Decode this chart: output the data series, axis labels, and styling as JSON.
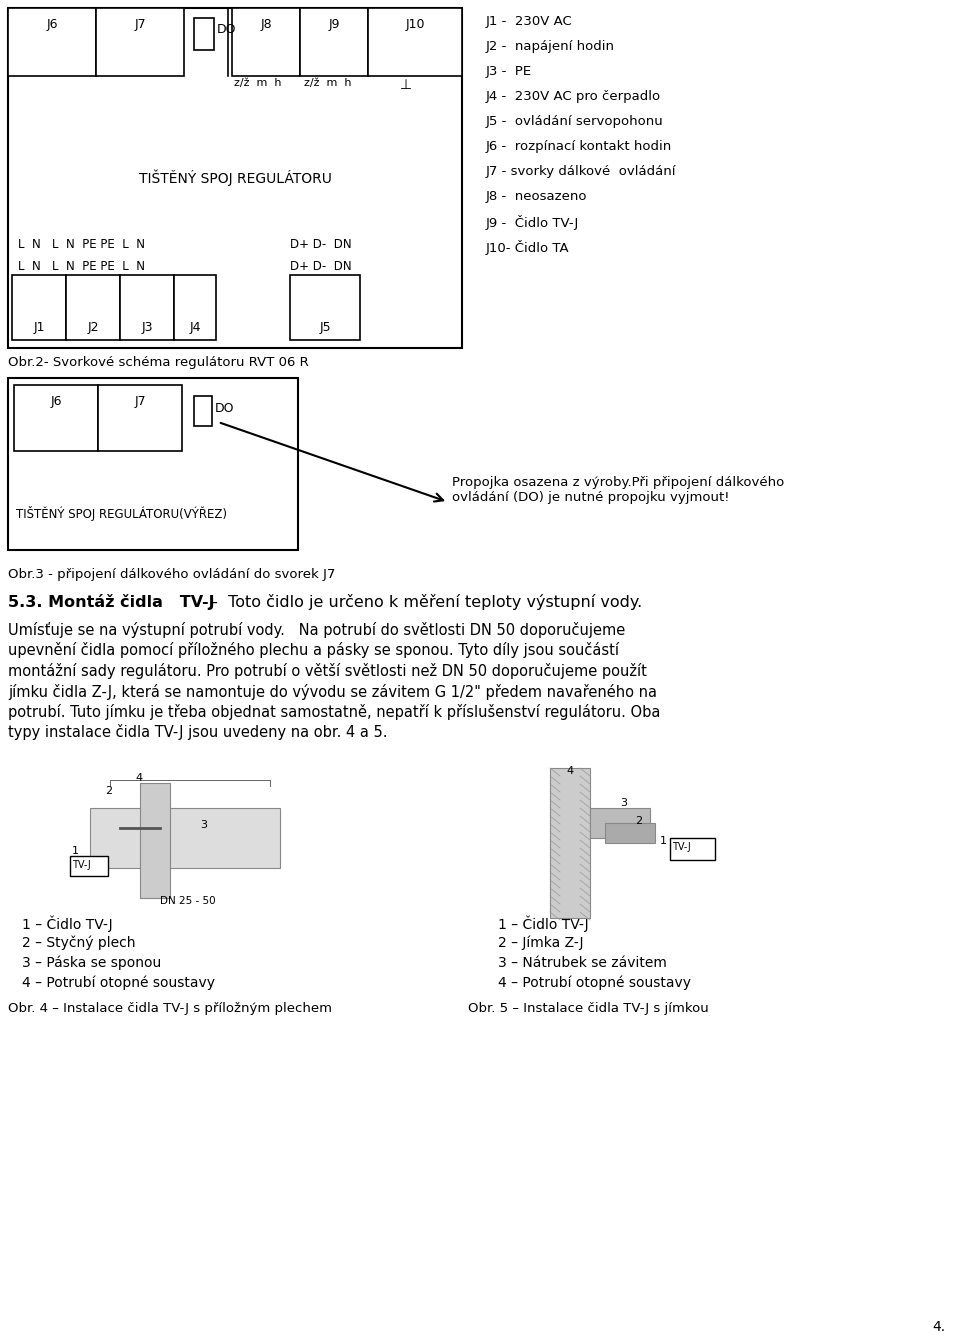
{
  "title_text": "Obr.2- Svorkové schéma regulátoru RVT 06 R",
  "obr3_text": "Obr.3 - připojení dálkového ovládání do svorek J7",
  "section53_bold": "5.3. Montáž čidla   TV-J",
  "section53_rest": " -  Toto čidlo je určeno k měření teploty výstupní vody.",
  "para_lines": [
    "Umísťuje se na výstupní potrubí vody.   Na potrubí do světlosti DN 50 doporučujeme",
    "upevnění čidla pomocí příložného plechu a pásky se sponou. Tyto díly jsou součástí",
    "montážní sady regulátoru. Pro potrubí o větší světlosti než DN 50 doporučujeme použít",
    "jímku čidla Z-J, která se namontuje do vývodu se závitem G 1/2\" předem navařeného na",
    "potrubí. Tuto jímku je třeba objednat samostatně, nepatří k příslušenství regulátoru. Oba",
    "typy instalace čidla TV-J jsou uvedeny na obr. 4 a 5."
  ],
  "legend_left": [
    "1 – Čidlo TV-J",
    "2 – Styčný plech",
    "3 – Páska se sponou",
    "4 – Potrubí otopné soustavy"
  ],
  "legend_right": [
    "1 – Čidlo TV-J",
    "2 – Jímka Z-J",
    "3 – Nátrubek se závitem",
    "4 – Potrubí otopné soustavy"
  ],
  "obr4_text": "Obr. 4 – Instalace čidla TV-J s příložným plechem",
  "obr5_text": "Obr. 5 – Instalace čidla TV-J s jímkou",
  "page_num": "4.",
  "legend_lines": [
    "J1 -  230V AC",
    "J2 -  napájení hodin",
    "J3 -  PE",
    "J4 -  230V AC pro čerpadlo",
    "J5 -  ovládání servopohonu",
    "J6 -  rozpínací kontakt hodin",
    "J7 - svorky dálkové  ovládání",
    "J8 -  neosazeno",
    "J9 -  Čidlo TV-J",
    "J10- Čidlo TA"
  ],
  "tisteny1": "TIŠTĚNÝ SPOJ REGULÁTORU",
  "tisteny2": "TIŠTĚNÝ SPOJ REGULÁTORU(VÝŘEZ)",
  "conn_row1": "L  N   L  N  PE PE  L  N                    D+ D-  DN",
  "conn_row2": "L  N   L  N  PE PE  L  N                    D+ D-  DN",
  "propojka_text": "Propojka osazena z výroby.Při připojení dálkového\novládání (DO) je nutné propojku vyjmout!",
  "bg_color": "#ffffff"
}
